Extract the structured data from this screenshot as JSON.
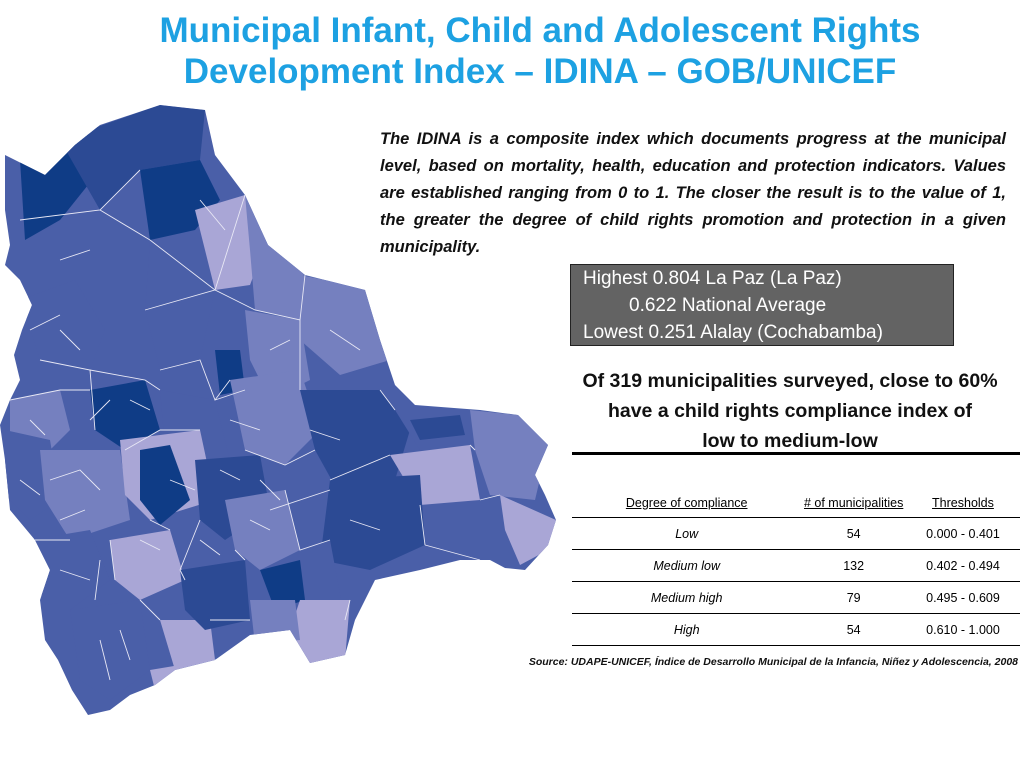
{
  "title": {
    "line1": "Municipal Infant, Child and Adolescent Rights",
    "line2": "Development Index – IDINA – GOB/UNICEF"
  },
  "description": "The IDINA is a composite index which documents progress at the municipal level, based on mortality, health, education and protection indicators.  Values are established ranging from 0 to 1. The closer the result is to the value of 1, the greater the degree of child rights promotion and protection in a given municipality.",
  "stats": {
    "highest": "Highest  0.804 La Paz (La Paz)",
    "average": "0.622 National Average",
    "lowest": "Lowest  0.251 Alalay (Cochabamba)"
  },
  "summary": {
    "line1": "Of 319 municipalities surveyed, close to 60%",
    "line2": "have a child rights compliance index of",
    "line3": "low to medium-low"
  },
  "table": {
    "headers": [
      "Degree of compliance",
      "#  of municipalities",
      "Thresholds"
    ],
    "rows": [
      {
        "degree": "Low",
        "count": "54",
        "threshold": "0.000 - 0.401"
      },
      {
        "degree": "Medium low",
        "count": "132",
        "threshold": "0.402 - 0.494"
      },
      {
        "degree": "Medium high",
        "count": "79",
        "threshold": "0.495 - 0.609"
      },
      {
        "degree": "High",
        "count": "54",
        "threshold": "0.610 - 1.000"
      }
    ]
  },
  "source": "Source: UDAPE-UNICEF, Índice de Desarrollo Municipal de la Infancia, Niñez y Adolescencia, 2008",
  "colors": {
    "title": "#1da1e2",
    "low": "#a9a6d6",
    "medium_low": "#7580bf",
    "medium_high": "#4a5fa8",
    "high": "#0f3c86",
    "stats_box": "#636363"
  }
}
